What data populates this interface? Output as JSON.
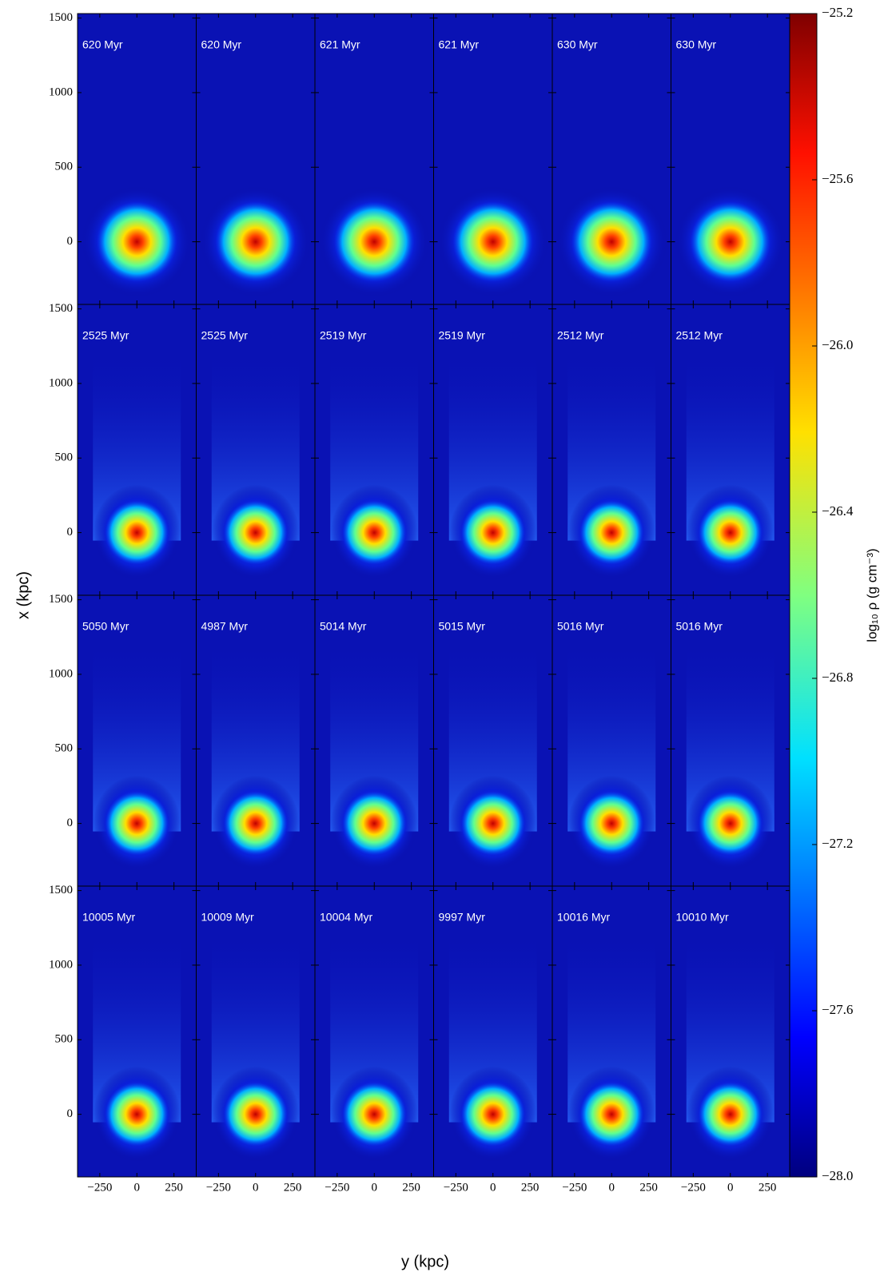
{
  "chart_data": {
    "type": "heatmap_grid",
    "panel_labels": [
      [
        "620 Myr",
        "620 Myr",
        "621 Myr",
        "621 Myr",
        "630 Myr",
        "630 Myr"
      ],
      [
        "2525 Myr",
        "2525 Myr",
        "2519 Myr",
        "2519 Myr",
        "2512 Myr",
        "2512 Myr"
      ],
      [
        "5050 Myr",
        "4987 Myr",
        "5014 Myr",
        "5015 Myr",
        "5016 Myr",
        "5016 Myr"
      ],
      [
        "10005 Myr",
        "10009 Myr",
        "10004 Myr",
        "9997 Myr",
        "10016 Myr",
        "10010 Myr"
      ]
    ],
    "xlabel": "y (kpc)",
    "ylabel": "x (kpc)",
    "xlim": [
      -400,
      400
    ],
    "xticks": [
      {
        "value": -250,
        "label": "−250"
      },
      0,
      250
    ],
    "ylim": [
      -420,
      1530
    ],
    "yticks": [
      0,
      500,
      1000,
      1500
    ],
    "colorbar_label": "log₁₀ ρ (g cm⁻³)",
    "clim": [
      -28.0,
      -25.2
    ],
    "cticks": [
      {
        "value": -25.2,
        "label": "−25.2"
      },
      {
        "value": -25.6,
        "label": "−25.6"
      },
      {
        "value": -26.0,
        "label": "−26.0"
      },
      {
        "value": -26.4,
        "label": "−26.4"
      },
      {
        "value": -26.8,
        "label": "−26.8"
      },
      {
        "value": -27.2,
        "label": "−27.2"
      },
      {
        "value": -27.6,
        "label": "−27.6"
      },
      {
        "value": -28.0,
        "label": "−28.0"
      }
    ]
  }
}
